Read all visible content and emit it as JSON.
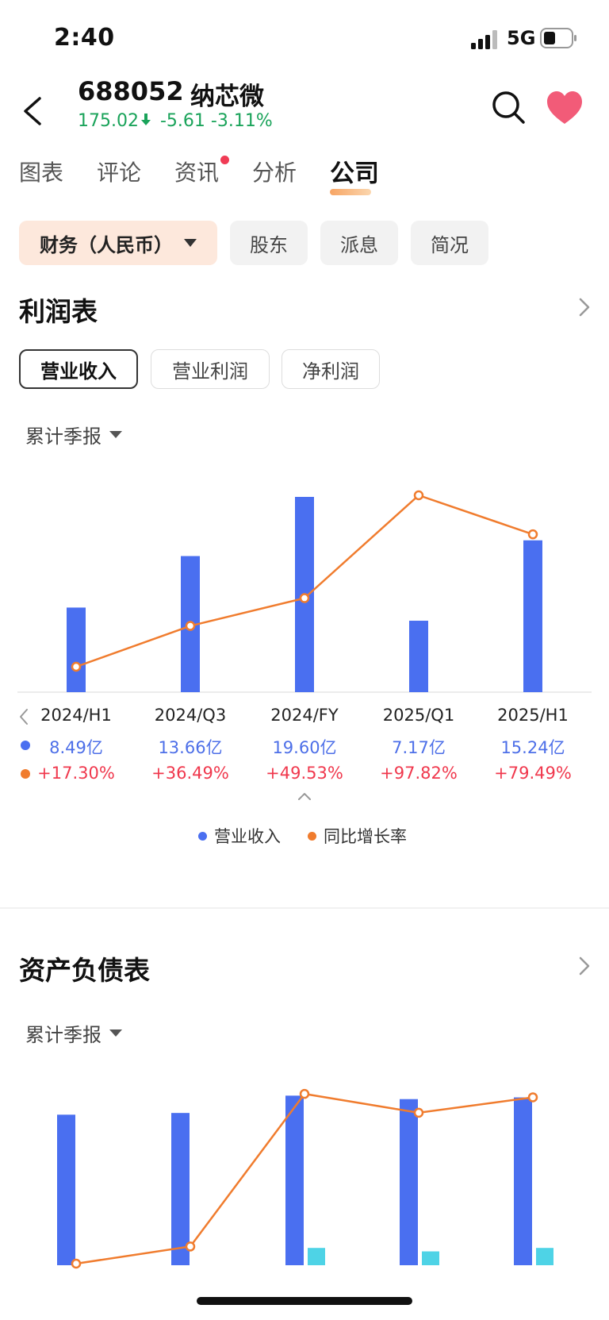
{
  "status_bar": {
    "time": "2:40",
    "network": "5G"
  },
  "header": {
    "code": "688052",
    "name": "纳芯微",
    "price": "175.02",
    "change": "-5.61",
    "change_pct": "-3.11%",
    "quote_color": "#1aa35a"
  },
  "tabs": [
    {
      "label": "图表"
    },
    {
      "label": "评论"
    },
    {
      "label": "资讯",
      "has_dot": true
    },
    {
      "label": "分析"
    },
    {
      "label": "公司",
      "active": true
    }
  ],
  "subtabs": [
    {
      "label": "财务（人民币）",
      "active": true
    },
    {
      "label": "股东"
    },
    {
      "label": "派息"
    },
    {
      "label": "简况"
    }
  ],
  "income": {
    "title": "利润表",
    "metric_tabs": [
      {
        "label": "营业收入",
        "active": true
      },
      {
        "label": "营业利润"
      },
      {
        "label": "净利润"
      }
    ],
    "period_selector": "累计季报",
    "legend": {
      "bar": "营业收入",
      "line": "同比增长率"
    },
    "value_strings": [
      "8.49亿",
      "13.66亿",
      "19.60亿",
      "7.17亿",
      "15.24亿"
    ],
    "growth_strings": [
      "+17.30%",
      "+36.49%",
      "+49.53%",
      "+97.82%",
      "+79.49%"
    ]
  },
  "balance": {
    "title": "资产负债表",
    "period_selector": "累计季报"
  },
  "colors": {
    "bar": "#4a6ff0",
    "line": "#f07c2e",
    "secondary_bar": "#4ed3e6",
    "value_text": "#4d6fe8",
    "growth_text": "#f0384d",
    "active_tab_chip": "#fde8dc"
  },
  "chart_data": [
    {
      "type": "bar",
      "categories": [
        "2024/H1",
        "2024/Q3",
        "2024/FY",
        "2025/Q1",
        "2025/H1"
      ],
      "series": [
        {
          "name": "营业收入",
          "type": "bar",
          "unit": "亿",
          "values": [
            8.49,
            13.66,
            19.6,
            7.17,
            15.24
          ]
        },
        {
          "name": "同比增长率",
          "type": "line",
          "unit": "%",
          "values": [
            17.3,
            36.49,
            49.53,
            97.82,
            79.49
          ]
        }
      ],
      "legend": "bottom-center",
      "grid": false
    },
    {
      "type": "bar",
      "categories": [
        "2024/H1",
        "2024/Q3",
        "2024/FY",
        "2025/Q1",
        "2025/H1"
      ],
      "series": [
        {
          "type": "bar",
          "values": [
            0.87,
            0.88,
            0.98,
            0.96,
            0.97
          ]
        },
        {
          "type": "bar",
          "values": [
            0,
            0,
            0.1,
            0.08,
            0.1
          ]
        },
        {
          "type": "line",
          "values": [
            0.0,
            0.1,
            0.99,
            0.88,
            0.97
          ]
        }
      ],
      "grid": false
    }
  ]
}
